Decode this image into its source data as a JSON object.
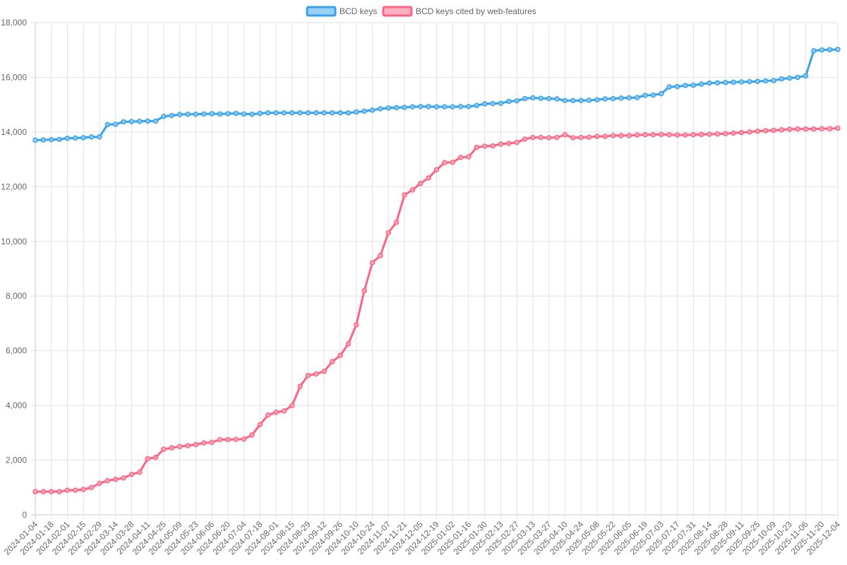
{
  "chart_data": {
    "type": "line",
    "ylim": [
      0,
      18000
    ],
    "y_ticks": [
      "0",
      "2,000",
      "4,000",
      "6,000",
      "8,000",
      "10,000",
      "12,000",
      "14,000",
      "16,000",
      "18,000"
    ],
    "grid": true,
    "legend_position": "top",
    "x": [
      "2024-01-04",
      "2024-01-11",
      "2024-01-18",
      "2024-01-25",
      "2024-02-01",
      "2024-02-08",
      "2024-02-15",
      "2024-02-22",
      "2024-02-29",
      "2024-03-07",
      "2024-03-14",
      "2024-03-21",
      "2024-03-28",
      "2024-04-04",
      "2024-04-11",
      "2024-04-18",
      "2024-04-25",
      "2024-05-02",
      "2024-05-09",
      "2024-05-16",
      "2024-05-23",
      "2024-05-30",
      "2024-06-06",
      "2024-06-13",
      "2024-06-20",
      "2024-06-27",
      "2024-07-04",
      "2024-07-11",
      "2024-07-18",
      "2024-07-25",
      "2024-08-01",
      "2024-08-08",
      "2024-08-15",
      "2024-08-22",
      "2024-08-29",
      "2024-09-05",
      "2024-09-12",
      "2024-09-19",
      "2024-09-26",
      "2024-10-03",
      "2024-10-10",
      "2024-10-17",
      "2024-10-24",
      "2024-10-31",
      "2024-11-07",
      "2024-11-14",
      "2024-11-21",
      "2024-11-28",
      "2024-12-05",
      "2024-12-12",
      "2024-12-19",
      "2024-12-26",
      "2025-01-02",
      "2025-01-09",
      "2025-01-16",
      "2025-01-23",
      "2025-01-30",
      "2025-02-06",
      "2025-02-13",
      "2025-02-20",
      "2025-02-27",
      "2025-03-06",
      "2025-03-13",
      "2025-03-20",
      "2025-03-27",
      "2025-04-03",
      "2025-04-10",
      "2025-04-17",
      "2025-04-24",
      "2025-05-01",
      "2025-05-08",
      "2025-05-15",
      "2025-05-22",
      "2025-05-29",
      "2025-06-05",
      "2025-06-12",
      "2025-06-19",
      "2025-06-26",
      "2025-07-03",
      "2025-07-10",
      "2025-07-17",
      "2025-07-24",
      "2025-07-31",
      "2025-08-07",
      "2025-08-14",
      "2025-08-21",
      "2025-08-28",
      "2025-09-04",
      "2025-09-11",
      "2025-09-18",
      "2025-09-25",
      "2025-10-02",
      "2025-10-09",
      "2025-10-16",
      "2025-10-23",
      "2025-10-30",
      "2025-11-06",
      "2025-11-13",
      "2025-11-20",
      "2025-11-27",
      "2025-12-04"
    ],
    "series": [
      {
        "name": "BCD keys",
        "color": "#36a2eb",
        "fill": "#9ad0f5",
        "values": [
          13700,
          13710,
          13720,
          13730,
          13770,
          13780,
          13790,
          13820,
          13820,
          14270,
          14280,
          14370,
          14380,
          14390,
          14400,
          14400,
          14570,
          14600,
          14640,
          14650,
          14650,
          14660,
          14670,
          14660,
          14670,
          14680,
          14660,
          14650,
          14680,
          14700,
          14700,
          14700,
          14700,
          14700,
          14700,
          14700,
          14700,
          14700,
          14700,
          14700,
          14730,
          14760,
          14800,
          14850,
          14880,
          14890,
          14900,
          14920,
          14930,
          14930,
          14920,
          14920,
          14920,
          14930,
          14930,
          14970,
          15030,
          15040,
          15050,
          15120,
          15140,
          15220,
          15250,
          15230,
          15220,
          15210,
          15150,
          15150,
          15150,
          15160,
          15180,
          15210,
          15220,
          15240,
          15250,
          15260,
          15340,
          15350,
          15400,
          15650,
          15660,
          15700,
          15710,
          15750,
          15790,
          15800,
          15810,
          15820,
          15830,
          15840,
          15850,
          15870,
          15880,
          15940,
          15970,
          16000,
          16050,
          16970,
          17000,
          17010,
          17020
        ]
      },
      {
        "name": "BCD keys cited by web-features",
        "color": "#ff6384",
        "fill": "#ffb1c1",
        "values": [
          850,
          850,
          850,
          850,
          900,
          900,
          930,
          1000,
          1150,
          1250,
          1300,
          1350,
          1480,
          1560,
          2050,
          2100,
          2400,
          2450,
          2500,
          2530,
          2570,
          2630,
          2650,
          2750,
          2750,
          2760,
          2770,
          2920,
          3300,
          3650,
          3750,
          3800,
          4000,
          4700,
          5100,
          5150,
          5250,
          5600,
          5830,
          6250,
          6950,
          8200,
          9220,
          9480,
          10320,
          10700,
          11700,
          11880,
          12120,
          12320,
          12620,
          12880,
          12890,
          13070,
          13090,
          13440,
          13480,
          13490,
          13560,
          13580,
          13620,
          13740,
          13800,
          13800,
          13790,
          13800,
          13900,
          13790,
          13800,
          13810,
          13840,
          13840,
          13870,
          13870,
          13870,
          13890,
          13900,
          13900,
          13910,
          13900,
          13890,
          13890,
          13900,
          13910,
          13920,
          13930,
          13940,
          13960,
          13980,
          14000,
          14030,
          14050,
          14060,
          14080,
          14100,
          14110,
          14110,
          14110,
          14120,
          14120,
          14140
        ]
      }
    ]
  }
}
